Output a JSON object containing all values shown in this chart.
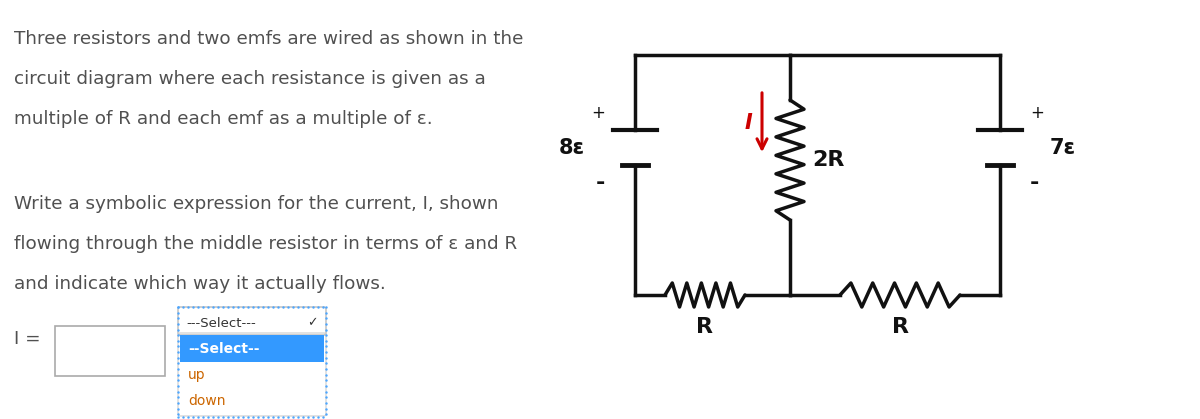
{
  "bg_color": "#ffffff",
  "text_color": "#505050",
  "circuit_color": "#111111",
  "current_color": "#cc0000",
  "text_lines_1": [
    "Three resistors and two emfs are wired as shown in the",
    "circuit diagram where each resistance is given as a",
    "multiple of R and each emf as a multiple of ε."
  ],
  "text_lines_2": [
    "Write a symbolic expression for the current, I, shown",
    "flowing through the middle resistor in terms of ε and R",
    "and indicate which way it actually flows."
  ],
  "label_8e": "8ε",
  "label_7e": "7ε",
  "label_2R": "2R",
  "label_R1": "R",
  "label_R2": "R",
  "label_I": "I",
  "label_plus": "+",
  "label_minus": "-",
  "select_text": "---Select---",
  "select_options": [
    "--Select--",
    "up",
    "down"
  ],
  "I_equals": "I =",
  "figsize": [
    12.0,
    4.19
  ],
  "dpi": 100
}
